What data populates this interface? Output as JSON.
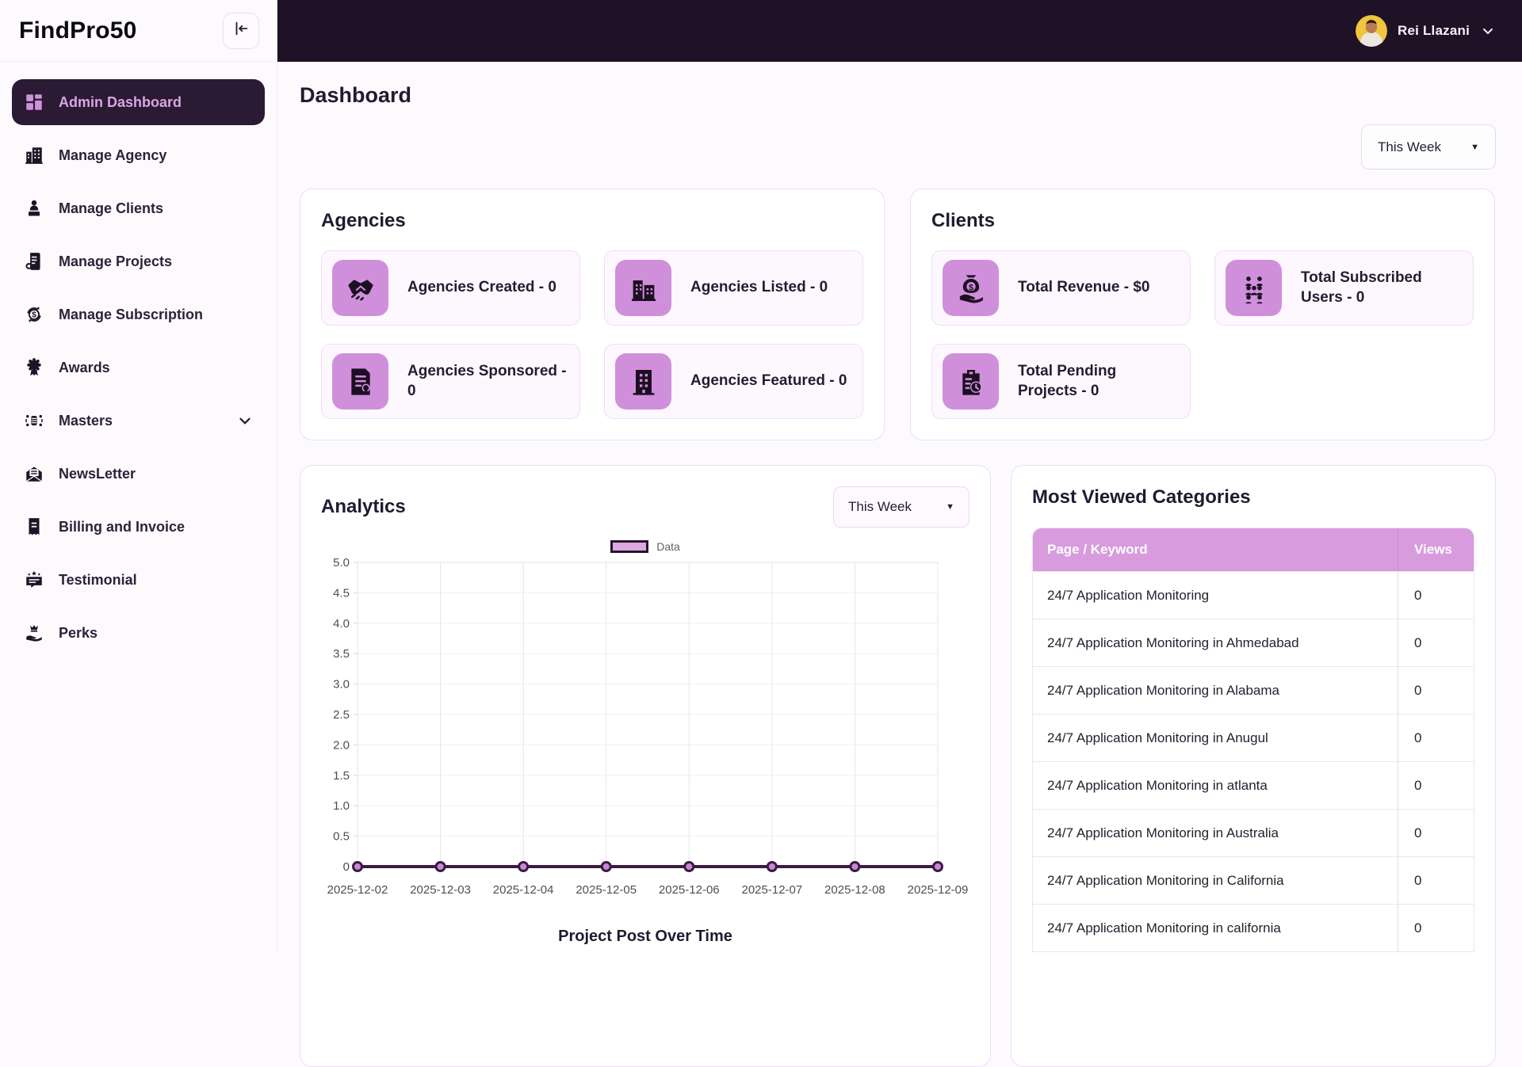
{
  "app": {
    "brand": "FindPro50"
  },
  "topbar": {
    "user_name": "Rei Llazani"
  },
  "sidebar": {
    "items": [
      {
        "label": "Admin Dashboard",
        "icon": "dashboard-grid-icon",
        "active": true
      },
      {
        "label": "Manage Agency",
        "icon": "agency-building-icon",
        "active": false
      },
      {
        "label": "Manage Clients",
        "icon": "clients-person-icon",
        "active": false
      },
      {
        "label": "Manage Projects",
        "icon": "projects-document-icon",
        "active": false
      },
      {
        "label": "Manage Subscription",
        "icon": "subscription-renewal-icon",
        "active": false
      },
      {
        "label": "Awards",
        "icon": "award-rosette-icon",
        "active": false
      },
      {
        "label": "Masters",
        "icon": "masters-network-icon",
        "active": false,
        "expandable": true
      },
      {
        "label": "NewsLetter",
        "icon": "newsletter-mail-icon",
        "active": false
      },
      {
        "label": "Billing and Invoice",
        "icon": "billing-receipt-icon",
        "active": false
      },
      {
        "label": "Testimonial",
        "icon": "testimonial-chat-icon",
        "active": false
      },
      {
        "label": "Perks",
        "icon": "perks-hand-crown-icon",
        "active": false
      }
    ]
  },
  "page": {
    "title": "Dashboard",
    "period_filter": "This Week"
  },
  "agencies_card": {
    "title": "Agencies",
    "stats": [
      {
        "icon": "handshake-icon",
        "label": "Agencies Created - 0"
      },
      {
        "icon": "buildings-icon",
        "label": "Agencies Listed - 0"
      },
      {
        "icon": "sponsored-document-icon",
        "label": "Agencies Sponsored - 0"
      },
      {
        "icon": "featured-building-icon",
        "label": "Agencies Featured - 0"
      }
    ]
  },
  "clients_card": {
    "title": "Clients",
    "stats": [
      {
        "icon": "money-hand-icon",
        "label": "Total Revenue - $0"
      },
      {
        "icon": "subscribed-users-icon",
        "label": "Total Subscribed Users - 0"
      },
      {
        "icon": "pending-projects-icon",
        "label": "Total Pending Projects - 0"
      }
    ]
  },
  "analytics": {
    "title": "Analytics",
    "period_filter": "This Week"
  },
  "chart_data": {
    "type": "line",
    "title": "Project Post Over Time",
    "legend": [
      "Data"
    ],
    "legend_position": "top",
    "x": [
      "2025-12-02",
      "2025-12-03",
      "2025-12-04",
      "2025-12-05",
      "2025-12-06",
      "2025-12-07",
      "2025-12-08",
      "2025-12-09"
    ],
    "series": [
      {
        "name": "Data",
        "values": [
          0,
          0,
          0,
          0,
          0,
          0,
          0,
          0
        ]
      }
    ],
    "ylim": [
      0,
      5
    ],
    "ytick_step": 0.5,
    "grid": true,
    "line_color": "#3a1c40",
    "marker_fill": "#c887d4",
    "legend_fill": "#dda8e2"
  },
  "most_viewed": {
    "title": "Most Viewed Categories",
    "columns": [
      "Page / Keyword",
      "Views"
    ],
    "rows": [
      {
        "keyword": "24/7 Application Monitoring",
        "views": "0"
      },
      {
        "keyword": "24/7 Application Monitoring in Ahmedabad",
        "views": "0"
      },
      {
        "keyword": "24/7 Application Monitoring in Alabama",
        "views": "0"
      },
      {
        "keyword": "24/7 Application Monitoring in Anugul",
        "views": "0"
      },
      {
        "keyword": "24/7 Application Monitoring in atlanta",
        "views": "0"
      },
      {
        "keyword": "24/7 Application Monitoring in Australia",
        "views": "0"
      },
      {
        "keyword": "24/7 Application Monitoring in California",
        "views": "0"
      },
      {
        "keyword": "24/7 Application Monitoring in california",
        "views": "0"
      }
    ]
  }
}
